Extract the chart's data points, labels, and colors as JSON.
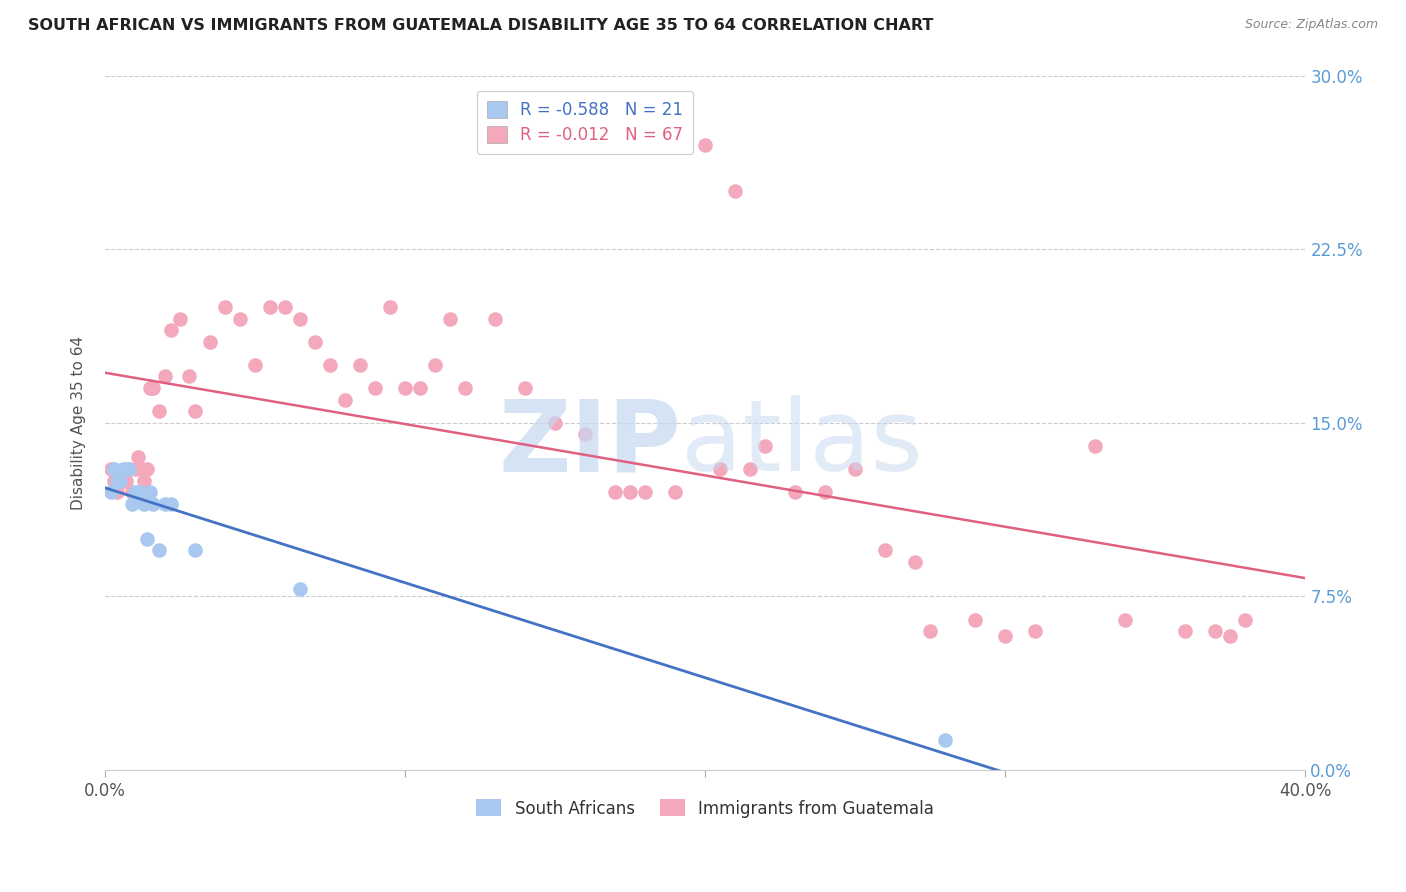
{
  "title": "SOUTH AFRICAN VS IMMIGRANTS FROM GUATEMALA DISABILITY AGE 35 TO 64 CORRELATION CHART",
  "source": "Source: ZipAtlas.com",
  "ylabel": "Disability Age 35 to 64",
  "ylabel_ticks": [
    "0.0%",
    "7.5%",
    "15.0%",
    "22.5%",
    "30.0%"
  ],
  "ylabel_tick_vals": [
    0.0,
    0.075,
    0.15,
    0.225,
    0.3
  ],
  "xlim": [
    0.0,
    0.4
  ],
  "ylim": [
    0.0,
    0.3
  ],
  "blue_R": -0.588,
  "blue_N": 21,
  "pink_R": -0.012,
  "pink_N": 67,
  "blue_color": "#A8C8F0",
  "pink_color": "#F4A8BC",
  "blue_line_color": "#4472C4",
  "pink_line_color": "#E06080",
  "legend_label_blue": "South Africans",
  "legend_label_pink": "Immigrants from Guatemala",
  "blue_x": [
    0.002,
    0.003,
    0.004,
    0.005,
    0.006,
    0.007,
    0.008,
    0.009,
    0.01,
    0.011,
    0.012,
    0.013,
    0.014,
    0.015,
    0.016,
    0.018,
    0.02,
    0.022,
    0.03,
    0.065,
    0.28
  ],
  "blue_y": [
    0.12,
    0.13,
    0.125,
    0.125,
    0.13,
    0.13,
    0.13,
    0.115,
    0.12,
    0.12,
    0.12,
    0.115,
    0.1,
    0.12,
    0.115,
    0.095,
    0.115,
    0.115,
    0.095,
    0.078,
    0.013
  ],
  "pink_x": [
    0.002,
    0.003,
    0.004,
    0.005,
    0.006,
    0.007,
    0.008,
    0.009,
    0.01,
    0.011,
    0.012,
    0.013,
    0.014,
    0.015,
    0.016,
    0.018,
    0.02,
    0.022,
    0.025,
    0.028,
    0.03,
    0.035,
    0.04,
    0.045,
    0.05,
    0.055,
    0.06,
    0.065,
    0.07,
    0.075,
    0.08,
    0.085,
    0.09,
    0.095,
    0.1,
    0.105,
    0.11,
    0.115,
    0.12,
    0.13,
    0.14,
    0.15,
    0.16,
    0.17,
    0.175,
    0.18,
    0.19,
    0.2,
    0.205,
    0.21,
    0.215,
    0.22,
    0.23,
    0.24,
    0.25,
    0.26,
    0.27,
    0.275,
    0.29,
    0.3,
    0.31,
    0.33,
    0.34,
    0.36,
    0.37,
    0.375,
    0.38
  ],
  "pink_y": [
    0.13,
    0.125,
    0.12,
    0.125,
    0.125,
    0.125,
    0.13,
    0.12,
    0.13,
    0.135,
    0.13,
    0.125,
    0.13,
    0.165,
    0.165,
    0.155,
    0.17,
    0.19,
    0.195,
    0.17,
    0.155,
    0.185,
    0.2,
    0.195,
    0.175,
    0.2,
    0.2,
    0.195,
    0.185,
    0.175,
    0.16,
    0.175,
    0.165,
    0.2,
    0.165,
    0.165,
    0.175,
    0.195,
    0.165,
    0.195,
    0.165,
    0.15,
    0.145,
    0.12,
    0.12,
    0.12,
    0.12,
    0.27,
    0.13,
    0.25,
    0.13,
    0.14,
    0.12,
    0.12,
    0.13,
    0.095,
    0.09,
    0.06,
    0.065,
    0.058,
    0.06,
    0.14,
    0.065,
    0.06,
    0.06,
    0.058,
    0.065
  ]
}
